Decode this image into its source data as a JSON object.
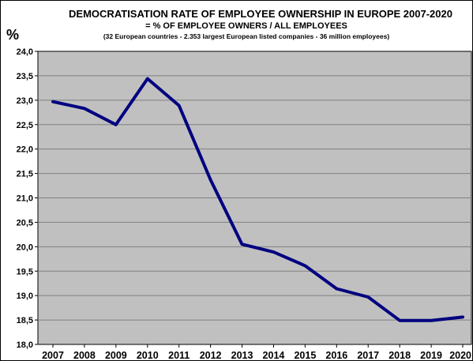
{
  "chart_data": {
    "type": "line",
    "title": "DEMOCRATISATION  RATE OF EMPLOYEE OWNERSHIP IN EUROPE  2007-2020",
    "subtitle": "= % OF EMPLOYEE OWNERS /  ALL EMPLOYEES",
    "note": "(32 European countries  - 2.353 largest European listed companies - 36 million employees)",
    "ylabel": "%",
    "xlabel": "",
    "categories": [
      "2007",
      "2008",
      "2009",
      "2010",
      "2011",
      "2012",
      "2013",
      "2014",
      "2015",
      "2016",
      "2017",
      "2018",
      "2019",
      "2020"
    ],
    "series": [
      {
        "values": [
          22.97,
          22.83,
          22.5,
          23.44,
          22.89,
          21.37,
          20.05,
          19.89,
          19.61,
          19.14,
          18.97,
          18.49,
          18.49,
          18.56
        ]
      }
    ],
    "ylim": [
      18.0,
      24.0
    ],
    "yticks": [
      "24,0",
      "23,5",
      "23,0",
      "22,5",
      "22,0",
      "21,5",
      "21,0",
      "20,5",
      "20,0",
      "19,5",
      "19,0",
      "18,5",
      "18,0"
    ],
    "grid": true,
    "legend": "none",
    "colors": {
      "plot_background": "#c0c0c0",
      "line": "#000080",
      "gridline": "#808080",
      "axis": "#000000"
    }
  }
}
